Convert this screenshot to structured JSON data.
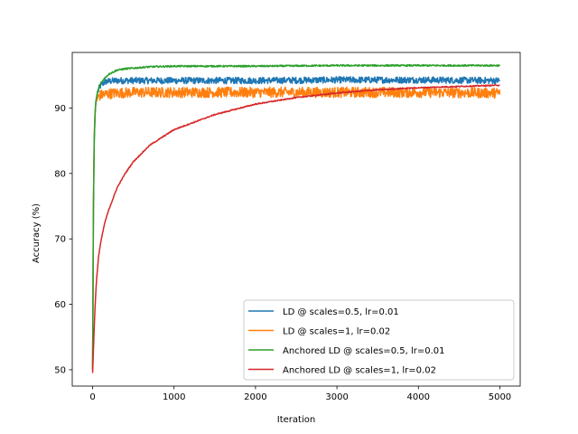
{
  "chart_data": {
    "type": "line",
    "title": "",
    "xlabel": "Iteration",
    "ylabel": "Accuracy (%)",
    "xlim": [
      -250,
      5250
    ],
    "ylim": [
      47.5,
      98.5
    ],
    "xticks": [
      0,
      1000,
      2000,
      3000,
      4000,
      5000
    ],
    "yticks": [
      50,
      60,
      70,
      80,
      90
    ],
    "grid": false,
    "legend_position": "lower-right",
    "series": [
      {
        "name": "LD @ scales=0.5, lr=0.01",
        "color": "#1f77b4",
        "noise": 0.5,
        "x": [
          0,
          10,
          20,
          30,
          40,
          60,
          80,
          100,
          150,
          200,
          300,
          500,
          1000,
          2000,
          3000,
          4000,
          5000
        ],
        "y": [
          50,
          75,
          85,
          89,
          91,
          92.3,
          93,
          93.5,
          94,
          94.1,
          94.2,
          94.2,
          94.2,
          94.2,
          94.3,
          94.3,
          94.2
        ]
      },
      {
        "name": "LD @ scales=1, lr=0.02",
        "color": "#ff7f0e",
        "noise": 0.8,
        "x": [
          0,
          10,
          20,
          30,
          40,
          60,
          80,
          100,
          150,
          200,
          300,
          500,
          1000,
          2000,
          3000,
          4000,
          5000
        ],
        "y": [
          50,
          76,
          86,
          89.5,
          90.8,
          91.5,
          91.8,
          92,
          92.1,
          92.2,
          92.3,
          92.4,
          92.4,
          92.4,
          92.4,
          92.4,
          92.3
        ]
      },
      {
        "name": "Anchored LD @ scales=0.5, lr=0.01",
        "color": "#2ca02c",
        "noise": 0.12,
        "x": [
          0,
          10,
          20,
          30,
          40,
          60,
          80,
          100,
          150,
          200,
          300,
          400,
          500,
          700,
          1000,
          2000,
          3000,
          4000,
          5000
        ],
        "y": [
          50,
          74,
          85,
          89,
          91,
          92.5,
          93.2,
          93.8,
          94.6,
          95.2,
          95.8,
          96,
          96.1,
          96.3,
          96.4,
          96.4,
          96.5,
          96.5,
          96.5
        ]
      },
      {
        "name": "Anchored LD @ scales=1, lr=0.02",
        "color": "#d62728",
        "noise": 0.08,
        "x": [
          0,
          10,
          20,
          30,
          40,
          50,
          75,
          100,
          150,
          200,
          300,
          400,
          500,
          700,
          1000,
          1500,
          2000,
          2500,
          3000,
          3500,
          4000,
          4500,
          5000
        ],
        "y": [
          49.5,
          53,
          56.5,
          59.5,
          62,
          64,
          67.5,
          69.5,
          72.5,
          74.5,
          77.8,
          80,
          81.8,
          84.3,
          86.7,
          89,
          90.6,
          91.6,
          92.3,
          92.8,
          93.1,
          93.3,
          93.5
        ]
      }
    ]
  }
}
